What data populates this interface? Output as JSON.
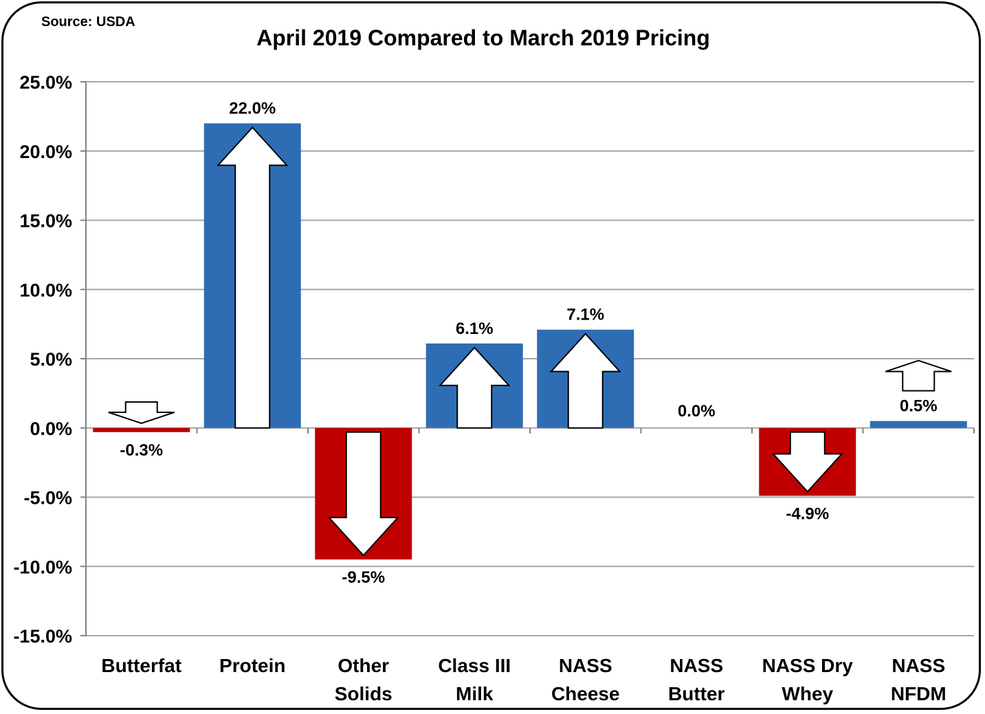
{
  "chart_data": {
    "type": "bar",
    "title": "April 2019 Compared to March 2019 Pricing",
    "source": "Source: USDA",
    "categories": [
      [
        "Butterfat"
      ],
      [
        "Protein"
      ],
      [
        "Other",
        "Solids"
      ],
      [
        "Class III",
        "Milk"
      ],
      [
        "NASS",
        "Cheese"
      ],
      [
        "NASS",
        "Butter"
      ],
      [
        "NASS Dry",
        "Whey"
      ],
      [
        "NASS",
        "NFDM"
      ]
    ],
    "values": [
      -0.3,
      22.0,
      -9.5,
      6.1,
      7.1,
      0.0,
      -4.9,
      0.5
    ],
    "data_labels": [
      "-0.3%",
      "22.0%",
      "-9.5%",
      "6.1%",
      "7.1%",
      "0.0%",
      "-4.9%",
      "0.5%"
    ],
    "arrows": [
      "down",
      "up",
      "down",
      "up",
      "up",
      "none",
      "down",
      "up"
    ],
    "ylim": [
      -15,
      25
    ],
    "yticks": [
      25,
      20,
      15,
      10,
      5,
      0,
      -5,
      -10,
      -15
    ],
    "ytick_labels": [
      "25.0%",
      "20.0%",
      "15.0%",
      "10.0%",
      "5.0%",
      "0.0%",
      "-5.0%",
      "-10.0%",
      "-15.0%"
    ],
    "grid": true,
    "xlabel": "",
    "ylabel": "",
    "colors": {
      "positive": "#2E6DB4",
      "negative": "#C00000",
      "grid": "#A6A6A6"
    }
  }
}
